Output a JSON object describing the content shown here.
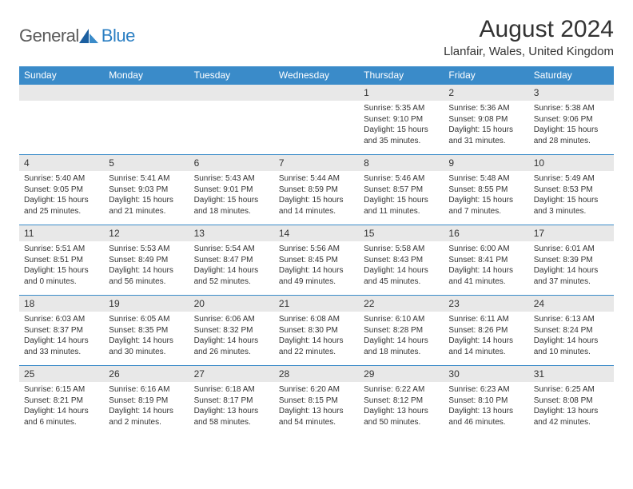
{
  "logo": {
    "part1": "General",
    "part2": "Blue"
  },
  "title": "August 2024",
  "location": "Llanfair, Wales, United Kingdom",
  "colors": {
    "header_bg": "#3a8bc9",
    "header_text": "#ffffff",
    "daynum_bg": "#e8e8e8",
    "text": "#333333",
    "row_divider": "#3a8bc9",
    "logo_gray": "#5a5a5a",
    "logo_blue": "#2b7fc3"
  },
  "daysOfWeek": [
    "Sunday",
    "Monday",
    "Tuesday",
    "Wednesday",
    "Thursday",
    "Friday",
    "Saturday"
  ],
  "weeks": [
    [
      {
        "blank": true
      },
      {
        "blank": true
      },
      {
        "blank": true
      },
      {
        "blank": true
      },
      {
        "n": "1",
        "sr": "5:35 AM",
        "ss": "9:10 PM",
        "dl": "15 hours and 35 minutes."
      },
      {
        "n": "2",
        "sr": "5:36 AM",
        "ss": "9:08 PM",
        "dl": "15 hours and 31 minutes."
      },
      {
        "n": "3",
        "sr": "5:38 AM",
        "ss": "9:06 PM",
        "dl": "15 hours and 28 minutes."
      }
    ],
    [
      {
        "n": "4",
        "sr": "5:40 AM",
        "ss": "9:05 PM",
        "dl": "15 hours and 25 minutes."
      },
      {
        "n": "5",
        "sr": "5:41 AM",
        "ss": "9:03 PM",
        "dl": "15 hours and 21 minutes."
      },
      {
        "n": "6",
        "sr": "5:43 AM",
        "ss": "9:01 PM",
        "dl": "15 hours and 18 minutes."
      },
      {
        "n": "7",
        "sr": "5:44 AM",
        "ss": "8:59 PM",
        "dl": "15 hours and 14 minutes."
      },
      {
        "n": "8",
        "sr": "5:46 AM",
        "ss": "8:57 PM",
        "dl": "15 hours and 11 minutes."
      },
      {
        "n": "9",
        "sr": "5:48 AM",
        "ss": "8:55 PM",
        "dl": "15 hours and 7 minutes."
      },
      {
        "n": "10",
        "sr": "5:49 AM",
        "ss": "8:53 PM",
        "dl": "15 hours and 3 minutes."
      }
    ],
    [
      {
        "n": "11",
        "sr": "5:51 AM",
        "ss": "8:51 PM",
        "dl": "15 hours and 0 minutes."
      },
      {
        "n": "12",
        "sr": "5:53 AM",
        "ss": "8:49 PM",
        "dl": "14 hours and 56 minutes."
      },
      {
        "n": "13",
        "sr": "5:54 AM",
        "ss": "8:47 PM",
        "dl": "14 hours and 52 minutes."
      },
      {
        "n": "14",
        "sr": "5:56 AM",
        "ss": "8:45 PM",
        "dl": "14 hours and 49 minutes."
      },
      {
        "n": "15",
        "sr": "5:58 AM",
        "ss": "8:43 PM",
        "dl": "14 hours and 45 minutes."
      },
      {
        "n": "16",
        "sr": "6:00 AM",
        "ss": "8:41 PM",
        "dl": "14 hours and 41 minutes."
      },
      {
        "n": "17",
        "sr": "6:01 AM",
        "ss": "8:39 PM",
        "dl": "14 hours and 37 minutes."
      }
    ],
    [
      {
        "n": "18",
        "sr": "6:03 AM",
        "ss": "8:37 PM",
        "dl": "14 hours and 33 minutes."
      },
      {
        "n": "19",
        "sr": "6:05 AM",
        "ss": "8:35 PM",
        "dl": "14 hours and 30 minutes."
      },
      {
        "n": "20",
        "sr": "6:06 AM",
        "ss": "8:32 PM",
        "dl": "14 hours and 26 minutes."
      },
      {
        "n": "21",
        "sr": "6:08 AM",
        "ss": "8:30 PM",
        "dl": "14 hours and 22 minutes."
      },
      {
        "n": "22",
        "sr": "6:10 AM",
        "ss": "8:28 PM",
        "dl": "14 hours and 18 minutes."
      },
      {
        "n": "23",
        "sr": "6:11 AM",
        "ss": "8:26 PM",
        "dl": "14 hours and 14 minutes."
      },
      {
        "n": "24",
        "sr": "6:13 AM",
        "ss": "8:24 PM",
        "dl": "14 hours and 10 minutes."
      }
    ],
    [
      {
        "n": "25",
        "sr": "6:15 AM",
        "ss": "8:21 PM",
        "dl": "14 hours and 6 minutes."
      },
      {
        "n": "26",
        "sr": "6:16 AM",
        "ss": "8:19 PM",
        "dl": "14 hours and 2 minutes."
      },
      {
        "n": "27",
        "sr": "6:18 AM",
        "ss": "8:17 PM",
        "dl": "13 hours and 58 minutes."
      },
      {
        "n": "28",
        "sr": "6:20 AM",
        "ss": "8:15 PM",
        "dl": "13 hours and 54 minutes."
      },
      {
        "n": "29",
        "sr": "6:22 AM",
        "ss": "8:12 PM",
        "dl": "13 hours and 50 minutes."
      },
      {
        "n": "30",
        "sr": "6:23 AM",
        "ss": "8:10 PM",
        "dl": "13 hours and 46 minutes."
      },
      {
        "n": "31",
        "sr": "6:25 AM",
        "ss": "8:08 PM",
        "dl": "13 hours and 42 minutes."
      }
    ]
  ],
  "labels": {
    "sunrise": "Sunrise:",
    "sunset": "Sunset:",
    "daylight": "Daylight:"
  }
}
